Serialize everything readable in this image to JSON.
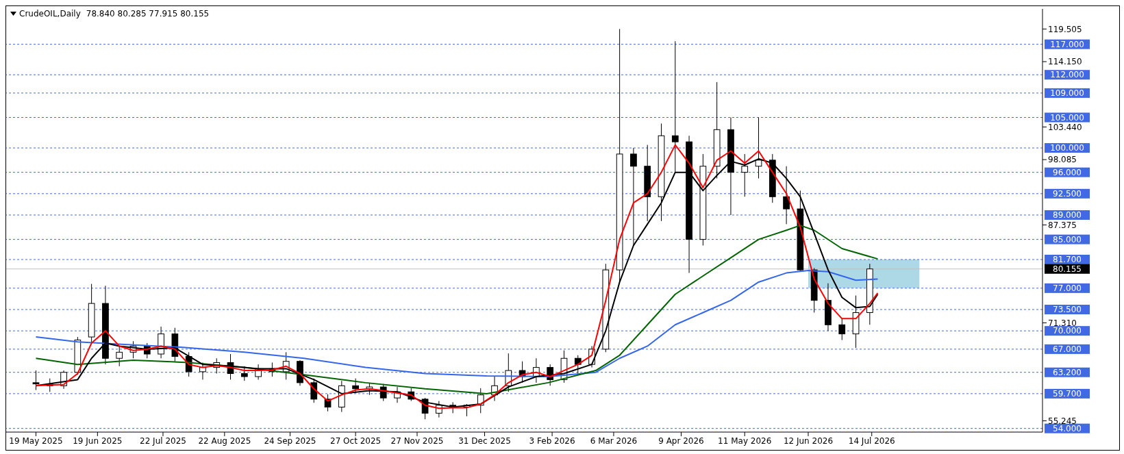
{
  "chart_data": {
    "type": "candlestick",
    "title": "CrudeOIL,Daily",
    "subtitle": "78.840 80.285 77.915 80.155",
    "x": [
      "2025-05-19",
      "2025-05-26",
      "2025-06-02",
      "2025-06-09",
      "2025-06-16",
      "2025-06-23",
      "2025-06-30",
      "2025-07-07",
      "2025-07-14",
      "2025-07-21",
      "2025-07-28",
      "2025-08-04",
      "2025-08-11",
      "2025-08-18",
      "2025-08-25",
      "2025-09-01",
      "2025-09-08",
      "2025-09-15",
      "2025-09-22",
      "2025-09-29",
      "2025-10-06",
      "2025-10-13",
      "2025-10-20",
      "2025-10-27",
      "2025-11-03",
      "2025-11-10",
      "2025-11-17",
      "2025-11-24",
      "2025-12-01",
      "2025-12-08",
      "2025-12-15",
      "2025-12-22",
      "2025-12-29",
      "2026-01-05",
      "2026-01-12",
      "2026-01-19",
      "2026-01-26",
      "2026-02-02",
      "2026-02-09",
      "2026-02-16",
      "2026-02-23",
      "2026-03-02",
      "2026-03-09",
      "2026-03-16",
      "2026-03-23",
      "2026-03-30",
      "2026-04-06",
      "2026-04-13",
      "2026-04-20",
      "2026-04-27",
      "2026-05-04",
      "2026-05-11",
      "2026-05-18",
      "2026-05-25",
      "2026-06-01",
      "2026-06-08",
      "2026-06-15",
      "2026-06-22",
      "2026-06-29",
      "2026-07-06",
      "2026-07-13"
    ],
    "ohlc": [
      [
        61.5,
        63.5,
        60.3,
        61.3
      ],
      [
        61.3,
        62.2,
        60,
        61
      ],
      [
        61,
        63.5,
        60.5,
        63.2
      ],
      [
        63.2,
        69,
        62.8,
        68.5
      ],
      [
        69,
        77.7,
        68,
        74.5
      ],
      [
        74.5,
        77.4,
        64.5,
        65.5
      ],
      [
        65.5,
        67.5,
        64.2,
        66.5
      ],
      [
        66.5,
        68.3,
        65.5,
        67.5
      ],
      [
        67.5,
        68,
        65.5,
        66.2
      ],
      [
        66.2,
        70.7,
        65.5,
        69.5
      ],
      [
        69.5,
        70.5,
        65,
        65.8
      ],
      [
        65.8,
        66.5,
        62.5,
        63.3
      ],
      [
        63.3,
        64.8,
        62,
        64
      ],
      [
        64,
        65.5,
        63,
        64.8
      ],
      [
        64.8,
        66.2,
        62,
        63
      ],
      [
        63,
        64.2,
        61.8,
        62.5
      ],
      [
        62.5,
        64.5,
        62,
        63.8
      ],
      [
        63.8,
        64.8,
        62.5,
        63.3
      ],
      [
        63.3,
        66.5,
        62,
        65
      ],
      [
        65,
        65.2,
        61,
        61.5
      ],
      [
        61.5,
        62.2,
        58.2,
        58.8
      ],
      [
        58.8,
        59.6,
        56.8,
        57.5
      ],
      [
        57.5,
        61.8,
        56.7,
        61
      ],
      [
        61,
        62.2,
        59.8,
        60.5
      ],
      [
        60.5,
        61.5,
        59.5,
        60.8
      ],
      [
        60.8,
        61.3,
        58.5,
        59
      ],
      [
        59,
        60.8,
        58.2,
        60
      ],
      [
        60,
        60.6,
        58.5,
        58.8
      ],
      [
        58.8,
        59,
        55.5,
        56.5
      ],
      [
        56.5,
        58.5,
        55.8,
        57.8
      ],
      [
        57.8,
        58.3,
        56.5,
        57.5
      ],
      [
        57.5,
        58,
        56,
        57.8
      ],
      [
        57.8,
        60.6,
        56.5,
        59.5
      ],
      [
        59.5,
        62.5,
        58.5,
        61
      ],
      [
        61,
        66.3,
        60,
        63.5
      ],
      [
        63.5,
        65,
        61.5,
        62.5
      ],
      [
        62.5,
        65.5,
        61.5,
        64
      ],
      [
        64,
        64.5,
        61,
        62
      ],
      [
        62,
        66.8,
        61.5,
        65.5
      ],
      [
        65.5,
        66,
        63,
        64.5
      ],
      [
        64.5,
        67.5,
        64,
        67
      ],
      [
        67,
        81,
        66.5,
        80
      ],
      [
        80,
        119.5,
        78,
        99
      ],
      [
        99,
        100,
        84,
        97
      ],
      [
        97,
        100.5,
        88,
        92
      ],
      [
        92,
        104,
        88,
        102
      ],
      [
        102,
        117.5,
        96,
        101
      ],
      [
        101,
        102,
        79.5,
        85
      ],
      [
        85,
        99,
        84,
        97
      ],
      [
        97,
        110.8,
        95,
        103
      ],
      [
        103,
        105,
        89,
        96
      ],
      [
        96,
        99,
        92,
        97
      ],
      [
        97,
        105,
        95,
        98
      ],
      [
        98,
        99,
        91,
        92
      ],
      [
        92,
        97,
        87.5,
        90
      ],
      [
        90,
        93,
        79.8,
        80
      ],
      [
        80,
        80.3,
        73,
        75
      ],
      [
        75,
        77.8,
        70,
        71
      ],
      [
        71,
        72,
        68.5,
        69.5
      ],
      [
        69.5,
        75.8,
        67.2,
        73
      ],
      [
        73,
        81,
        71,
        80.155
      ]
    ],
    "series": [
      {
        "type": "line",
        "color": "#ff0000",
        "x": [
          "2025-05-19",
          "2025-06-02",
          "2025-06-09",
          "2025-06-16",
          "2025-06-23",
          "2025-06-30",
          "2025-07-07",
          "2025-07-14",
          "2025-07-21",
          "2025-07-28",
          "2025-08-04",
          "2025-08-11",
          "2025-08-18",
          "2025-08-25",
          "2025-09-01",
          "2025-09-08",
          "2025-09-15",
          "2025-09-22",
          "2025-09-29",
          "2025-10-06",
          "2025-10-13",
          "2025-10-20",
          "2025-10-27",
          "2025-11-03",
          "2025-11-10",
          "2025-11-17",
          "2025-11-24",
          "2025-12-01",
          "2025-12-08",
          "2025-12-15",
          "2025-12-22",
          "2025-12-29",
          "2026-01-05",
          "2026-01-12",
          "2026-01-19",
          "2026-01-26",
          "2026-02-02",
          "2026-02-09",
          "2026-02-16",
          "2026-02-23",
          "2026-03-02",
          "2026-03-09",
          "2026-03-16",
          "2026-03-23",
          "2026-03-30",
          "2026-04-06",
          "2026-04-13",
          "2026-04-20",
          "2026-04-27",
          "2026-05-04",
          "2026-05-11",
          "2026-05-18",
          "2026-05-25",
          "2026-06-01",
          "2026-06-08",
          "2026-06-15",
          "2026-06-22",
          "2026-06-29",
          "2026-07-06",
          "2026-07-13",
          "2026-07-17"
        ],
        "values": [
          61,
          61.2,
          63,
          68,
          70,
          67.5,
          66.8,
          67,
          67.5,
          67,
          64.5,
          64,
          64.3,
          64,
          63.5,
          63.5,
          63.6,
          64.2,
          63,
          60.5,
          58.5,
          59.5,
          60.3,
          60.5,
          60.2,
          59.8,
          59.5,
          57.8,
          57.3,
          57.4,
          57.4,
          58,
          59.5,
          61.5,
          62.8,
          63.2,
          62.5,
          63.5,
          64.5,
          66,
          75,
          85,
          91,
          92.5,
          96,
          100.5,
          97.5,
          93.5,
          98,
          99.5,
          97.5,
          99.5,
          96,
          92.5,
          87,
          78.5,
          74.5,
          72,
          72,
          74.5,
          76.2
        ]
      },
      {
        "type": "line",
        "color": "#000000",
        "x": [
          "2025-05-19",
          "2025-06-09",
          "2025-06-16",
          "2025-06-23",
          "2025-06-30",
          "2025-07-14",
          "2025-07-28",
          "2025-08-11",
          "2025-08-25",
          "2025-09-08",
          "2025-09-22",
          "2025-10-06",
          "2025-10-20",
          "2025-11-03",
          "2025-11-17",
          "2025-12-01",
          "2025-12-15",
          "2025-12-29",
          "2026-01-12",
          "2026-01-26",
          "2026-02-09",
          "2026-02-23",
          "2026-03-02",
          "2026-03-09",
          "2026-03-16",
          "2026-03-23",
          "2026-03-30",
          "2026-04-06",
          "2026-04-13",
          "2026-04-20",
          "2026-04-27",
          "2026-05-04",
          "2026-05-11",
          "2026-05-18",
          "2026-05-25",
          "2026-06-01",
          "2026-06-08",
          "2026-06-15",
          "2026-06-22",
          "2026-06-29",
          "2026-07-06",
          "2026-07-13",
          "2026-07-17"
        ],
        "values": [
          61,
          62,
          65.5,
          68,
          67.5,
          67,
          67.2,
          64.5,
          64.2,
          63.8,
          63.8,
          62,
          59.7,
          60.2,
          60,
          58.3,
          57.5,
          58,
          60.8,
          62.5,
          63,
          64.5,
          70,
          78,
          84,
          87.5,
          91,
          96,
          96,
          93,
          95.5,
          97.8,
          97.2,
          98.2,
          97.5,
          95,
          92,
          86,
          80,
          75.5,
          73.8,
          74,
          76
        ]
      },
      {
        "type": "line",
        "color": "#006400",
        "x": [
          "2025-05-19",
          "2025-06-09",
          "2025-07-07",
          "2025-08-04",
          "2025-09-01",
          "2025-10-01",
          "2025-11-01",
          "2025-12-01",
          "2026-01-01",
          "2026-02-01",
          "2026-02-25",
          "2026-03-09",
          "2026-03-23",
          "2026-04-06",
          "2026-04-20",
          "2026-05-04",
          "2026-05-18",
          "2026-06-01",
          "2026-06-08",
          "2026-06-15",
          "2026-06-29",
          "2026-07-17"
        ],
        "values": [
          65.5,
          64.5,
          65.2,
          64.8,
          64,
          62.8,
          61.5,
          60.5,
          59.7,
          61.5,
          63.5,
          66,
          71,
          76,
          79,
          82,
          85,
          86.5,
          87.3,
          86.5,
          83.5,
          81.8
        ]
      },
      {
        "type": "line",
        "color": "#3366ee",
        "x": [
          "2025-05-19",
          "2025-06-09",
          "2025-07-01",
          "2025-08-01",
          "2025-09-01",
          "2025-10-01",
          "2025-11-01",
          "2025-12-01",
          "2026-01-01",
          "2026-02-01",
          "2026-02-25",
          "2026-03-09",
          "2026-03-23",
          "2026-04-06",
          "2026-04-20",
          "2026-05-04",
          "2026-05-18",
          "2026-06-01",
          "2026-06-12",
          "2026-06-22",
          "2026-07-06",
          "2026-07-17"
        ],
        "values": [
          69,
          68.2,
          67.8,
          67.3,
          66.5,
          65.5,
          64,
          63,
          62.6,
          62.5,
          63.2,
          65.5,
          67.5,
          71,
          73,
          75,
          78,
          79.5,
          79.9,
          79.7,
          78.3,
          78.5
        ]
      }
    ],
    "xlim": [
      "2025-05-04",
      "2026-10-08"
    ],
    "xticks": [
      {
        "value": "2025-05-19",
        "label": "19 May 2025"
      },
      {
        "value": "2025-06-19",
        "label": "19 Jun 2025"
      },
      {
        "value": "2025-07-22",
        "label": "22 Jul 2025"
      },
      {
        "value": "2025-08-22",
        "label": "22 Aug 2025"
      },
      {
        "value": "2025-09-24",
        "label": "24 Sep 2025"
      },
      {
        "value": "2025-10-27",
        "label": "27 Oct 2025"
      },
      {
        "value": "2025-11-27",
        "label": "27 Nov 2025"
      },
      {
        "value": "2025-12-31",
        "label": "31 Dec 2025"
      },
      {
        "value": "2026-02-03",
        "label": "3 Feb 2026"
      },
      {
        "value": "2026-03-06",
        "label": "6 Mar 2026"
      },
      {
        "value": "2026-04-09",
        "label": "9 Apr 2026"
      },
      {
        "value": "2026-05-11",
        "label": "11 May 2026"
      },
      {
        "value": "2026-06-12",
        "label": "12 Jun 2026"
      },
      {
        "value": "2026-07-14",
        "label": "14 Jul 2026"
      }
    ],
    "ylim": [
      53.4,
      122.8
    ],
    "yticks": [
      {
        "value": 119.505,
        "label": "119.505"
      },
      {
        "value": 114.15,
        "label": "114.150"
      },
      {
        "value": 103.44,
        "label": "103.440"
      },
      {
        "value": 98.085,
        "label": "98.085"
      },
      {
        "value": 87.375,
        "label": "87.375"
      },
      {
        "value": 71.31,
        "label": "71.310"
      },
      {
        "value": 55.245,
        "label": "55.245"
      }
    ],
    "ref_lines": [
      {
        "axis": "y",
        "value": 117,
        "label": "117.000",
        "color": "#4169e1",
        "line_style": "dashed"
      },
      {
        "axis": "y",
        "value": 112,
        "label": "112.000",
        "color": "#4169e1",
        "line_style": "dashed"
      },
      {
        "axis": "y",
        "value": 109,
        "label": "109.000",
        "color": "#4169e1",
        "line_style": "dashed"
      },
      {
        "axis": "y",
        "value": 105,
        "label": "105.000",
        "color": "#4169e1",
        "line_style": "dashed"
      },
      {
        "axis": "y",
        "value": 100,
        "label": "100.000",
        "color": "#4169e1",
        "line_style": "dashed"
      },
      {
        "axis": "y",
        "value": 96,
        "label": "96.000",
        "color": "#4169e1",
        "line_style": "dashed"
      },
      {
        "axis": "y",
        "value": 92.5,
        "label": "92.500",
        "color": "#4169e1",
        "line_style": "dashed"
      },
      {
        "axis": "y",
        "value": 89,
        "label": "89.000",
        "color": "#4169e1",
        "line_style": "dashed"
      },
      {
        "axis": "y",
        "value": 85,
        "label": "85.000",
        "color": "#4169e1",
        "line_style": "dashed"
      },
      {
        "axis": "y",
        "value": 81.7,
        "label": "81.700",
        "color": "#4169e1",
        "line_style": "dashed"
      },
      {
        "axis": "y",
        "value": 80.155,
        "label": "80.155",
        "color": "#c0c0c0",
        "line_style": "solid"
      },
      {
        "axis": "y",
        "value": 77,
        "label": "77.000",
        "color": "#4169e1",
        "line_style": "dashed"
      },
      {
        "axis": "y",
        "value": 73.5,
        "label": "73.500",
        "color": "#4169e1",
        "line_style": "dashed"
      },
      {
        "axis": "y",
        "value": 70,
        "label": "70.000",
        "color": "#4169e1",
        "line_style": "dashed"
      },
      {
        "axis": "y",
        "value": 67,
        "label": "67.000",
        "color": "#4169e1",
        "line_style": "dashed"
      },
      {
        "axis": "y",
        "value": 63.2,
        "label": "63.200",
        "color": "#4169e1",
        "line_style": "dashed"
      },
      {
        "axis": "y",
        "value": 59.7,
        "label": "59.700",
        "color": "#4169e1",
        "line_style": "dashed"
      },
      {
        "axis": "y",
        "value": 54,
        "label": "54.000",
        "color": "#4169e1",
        "line_style": "dashed"
      }
    ],
    "bands": [
      {
        "axis": "x",
        "from": "2026-06-12",
        "to": "2026-08-07",
        "color": "#add8e6"
      }
    ],
    "grid": false,
    "legend": false
  }
}
